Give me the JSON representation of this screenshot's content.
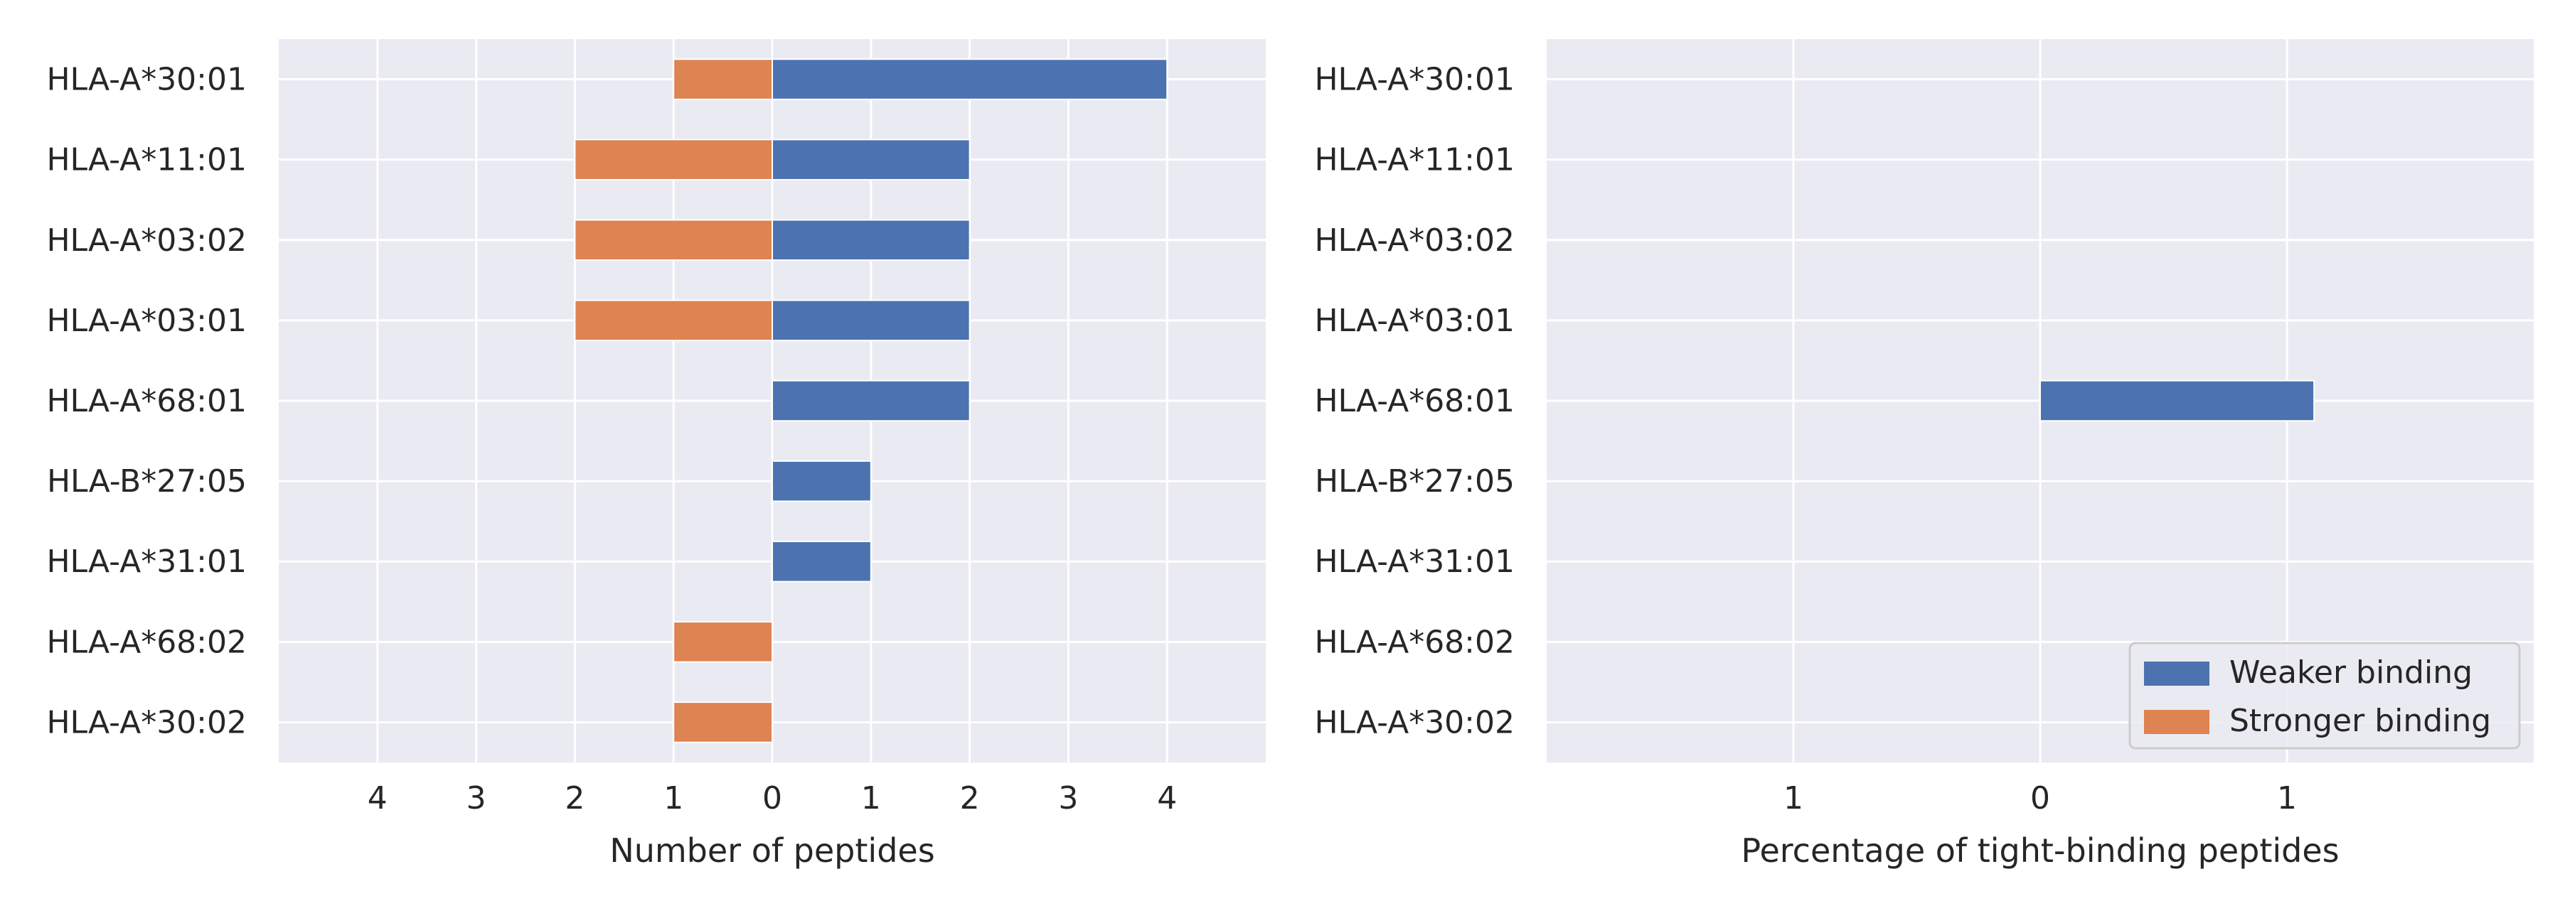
{
  "colors": {
    "weaker": "#4c72b0",
    "stronger": "#dd8452",
    "background": "#eaeaf2",
    "grid": "#ffffff",
    "text": "#262626"
  },
  "chart_data": [
    {
      "type": "bar",
      "orientation": "horizontal",
      "layout": "diverging",
      "categories": [
        "HLA-A*30:01",
        "HLA-A*11:01",
        "HLA-A*03:02",
        "HLA-A*03:01",
        "HLA-A*68:01",
        "HLA-B*27:05",
        "HLA-A*31:01",
        "HLA-A*68:02",
        "HLA-A*30:02"
      ],
      "series": [
        {
          "name": "Weaker binding",
          "side": "right",
          "color": "#4c72b0",
          "values": [
            4,
            2,
            2,
            2,
            2,
            1,
            1,
            0,
            0
          ]
        },
        {
          "name": "Stronger binding",
          "side": "left",
          "color": "#dd8452",
          "values": [
            1,
            2,
            2,
            2,
            0,
            0,
            0,
            1,
            1
          ]
        }
      ],
      "xlim": [
        -5,
        5
      ],
      "xticks": [
        -4,
        -3,
        -2,
        -1,
        0,
        1,
        2,
        3,
        4
      ],
      "xtick_labels": [
        "4",
        "3",
        "2",
        "1",
        "0",
        "1",
        "2",
        "3",
        "4"
      ],
      "xlabel": "Number of peptides",
      "ylabel": "",
      "grid": true
    },
    {
      "type": "bar",
      "orientation": "horizontal",
      "layout": "diverging",
      "categories": [
        "HLA-A*30:01",
        "HLA-A*11:01",
        "HLA-A*03:02",
        "HLA-A*03:01",
        "HLA-A*68:01",
        "HLA-B*27:05",
        "HLA-A*31:01",
        "HLA-A*68:02",
        "HLA-A*30:02"
      ],
      "series": [
        {
          "name": "Weaker binding",
          "side": "right",
          "color": "#4c72b0",
          "values": [
            0,
            0,
            0,
            0,
            1.11,
            0,
            0,
            0,
            0
          ]
        },
        {
          "name": "Stronger binding",
          "side": "left",
          "color": "#dd8452",
          "values": [
            0,
            0,
            0,
            0,
            0,
            0,
            0,
            0,
            0
          ]
        }
      ],
      "xlim": [
        -2,
        2
      ],
      "xticks": [
        -1,
        0,
        1
      ],
      "xtick_labels": [
        "1",
        "0",
        "1"
      ],
      "xlabel": "Percentage of tight-binding peptides",
      "ylabel": "",
      "grid": true,
      "legend": {
        "placement": "lower-right",
        "entries": [
          "Weaker binding",
          "Stronger binding"
        ]
      }
    }
  ]
}
